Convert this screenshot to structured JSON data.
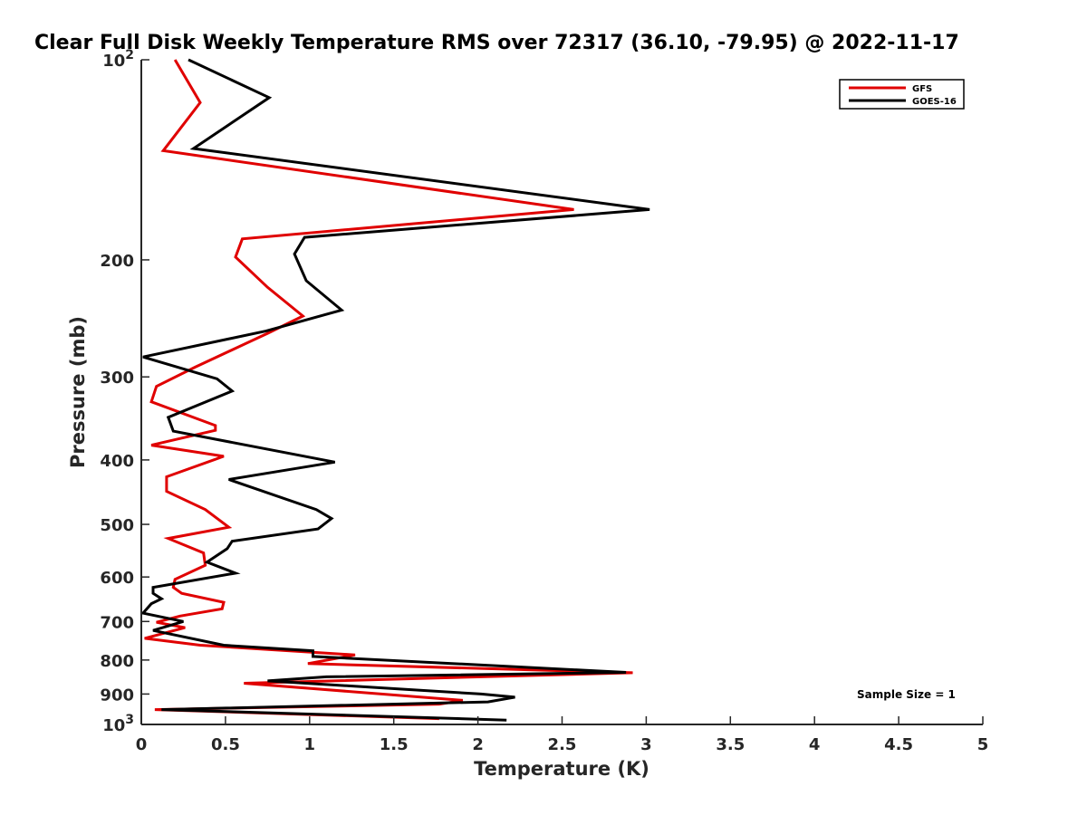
{
  "chart_data": {
    "type": "line",
    "title": "Clear Full Disk Weekly Temperature RMS over 72317 (36.10, -79.95) @ 2022-11-17",
    "xlabel": "Temperature (K)",
    "ylabel": "Pressure (mb)",
    "xlim": [
      0,
      5
    ],
    "ylim": [
      100,
      1000
    ],
    "y_scale": "log",
    "y_reversed": true,
    "x_ticks": [
      0,
      0.5,
      1,
      1.5,
      2,
      2.5,
      3,
      3.5,
      4,
      4.5,
      5
    ],
    "x_tick_labels": [
      "0",
      "0.5",
      "1",
      "1.5",
      "2",
      "2.5",
      "3",
      "3.5",
      "4",
      "4.5",
      "5"
    ],
    "y_ticks": [
      100,
      200,
      300,
      400,
      500,
      600,
      700,
      800,
      900,
      1000
    ],
    "y_tick_labels": [
      {
        "base": "10",
        "exp": "2"
      },
      {
        "base": "200",
        "exp": ""
      },
      {
        "base": "300",
        "exp": ""
      },
      {
        "base": "400",
        "exp": ""
      },
      {
        "base": "500",
        "exp": ""
      },
      {
        "base": "600",
        "exp": ""
      },
      {
        "base": "700",
        "exp": ""
      },
      {
        "base": "800",
        "exp": ""
      },
      {
        "base": "900",
        "exp": ""
      },
      {
        "base": "10",
        "exp": "3"
      }
    ],
    "grid": false,
    "legend_position": "top-right",
    "series": [
      {
        "name": "GFS",
        "color": "#e00000",
        "points": [
          [
            0.2,
            100
          ],
          [
            0.35,
            116
          ],
          [
            0.13,
            137
          ],
          [
            2.57,
            168
          ],
          [
            0.6,
            186
          ],
          [
            0.56,
            198
          ],
          [
            0.75,
            220
          ],
          [
            0.96,
            243
          ],
          [
            0.75,
            258
          ],
          [
            0.32,
            290
          ],
          [
            0.09,
            310
          ],
          [
            0.06,
            327
          ],
          [
            0.44,
            355
          ],
          [
            0.44,
            361
          ],
          [
            0.06,
            380
          ],
          [
            0.49,
            395
          ],
          [
            0.15,
            424
          ],
          [
            0.15,
            446
          ],
          [
            0.38,
            475
          ],
          [
            0.52,
            505
          ],
          [
            0.16,
            525
          ],
          [
            0.37,
            552
          ],
          [
            0.38,
            576
          ],
          [
            0.2,
            605
          ],
          [
            0.19,
            622
          ],
          [
            0.24,
            635
          ],
          [
            0.49,
            655
          ],
          [
            0.48,
            670
          ],
          [
            0.23,
            687
          ],
          [
            0.09,
            702
          ],
          [
            0.26,
            715
          ],
          [
            0.02,
            742
          ],
          [
            0.35,
            760
          ],
          [
            1.27,
            786
          ],
          [
            0.99,
            810
          ],
          [
            2.92,
            836
          ],
          [
            0.61,
            867
          ],
          [
            1.91,
            920
          ],
          [
            1.77,
            932
          ],
          [
            0.08,
            950
          ],
          [
            1.77,
            980
          ]
        ]
      },
      {
        "name": "GOES-16",
        "color": "#000000",
        "points": [
          [
            0.28,
            100
          ],
          [
            0.76,
            114
          ],
          [
            0.31,
            136
          ],
          [
            3.02,
            168
          ],
          [
            0.97,
            185
          ],
          [
            0.91,
            196
          ],
          [
            0.98,
            215
          ],
          [
            1.19,
            238
          ],
          [
            0.74,
            256
          ],
          [
            0.01,
            280
          ],
          [
            0.45,
            302
          ],
          [
            0.54,
            315
          ],
          [
            0.16,
            345
          ],
          [
            0.19,
            362
          ],
          [
            1.15,
            403
          ],
          [
            0.52,
            428
          ],
          [
            1.04,
            475
          ],
          [
            1.13,
            490
          ],
          [
            1.05,
            508
          ],
          [
            0.54,
            530
          ],
          [
            0.51,
            544
          ],
          [
            0.39,
            570
          ],
          [
            0.56,
            592
          ],
          [
            0.07,
            622
          ],
          [
            0.07,
            635
          ],
          [
            0.12,
            647
          ],
          [
            0.06,
            658
          ],
          [
            0.01,
            680
          ],
          [
            0.25,
            700
          ],
          [
            0.07,
            722
          ],
          [
            0.49,
            760
          ],
          [
            1.02,
            775
          ],
          [
            1.02,
            790
          ],
          [
            2.88,
            835
          ],
          [
            1.1,
            848
          ],
          [
            0.75,
            860
          ],
          [
            2.02,
            900
          ],
          [
            2.22,
            910
          ],
          [
            2.06,
            925
          ],
          [
            0.12,
            950
          ],
          [
            2.17,
            985
          ]
        ]
      }
    ],
    "annotations": [
      {
        "text": "Sample Size = 1"
      }
    ]
  }
}
